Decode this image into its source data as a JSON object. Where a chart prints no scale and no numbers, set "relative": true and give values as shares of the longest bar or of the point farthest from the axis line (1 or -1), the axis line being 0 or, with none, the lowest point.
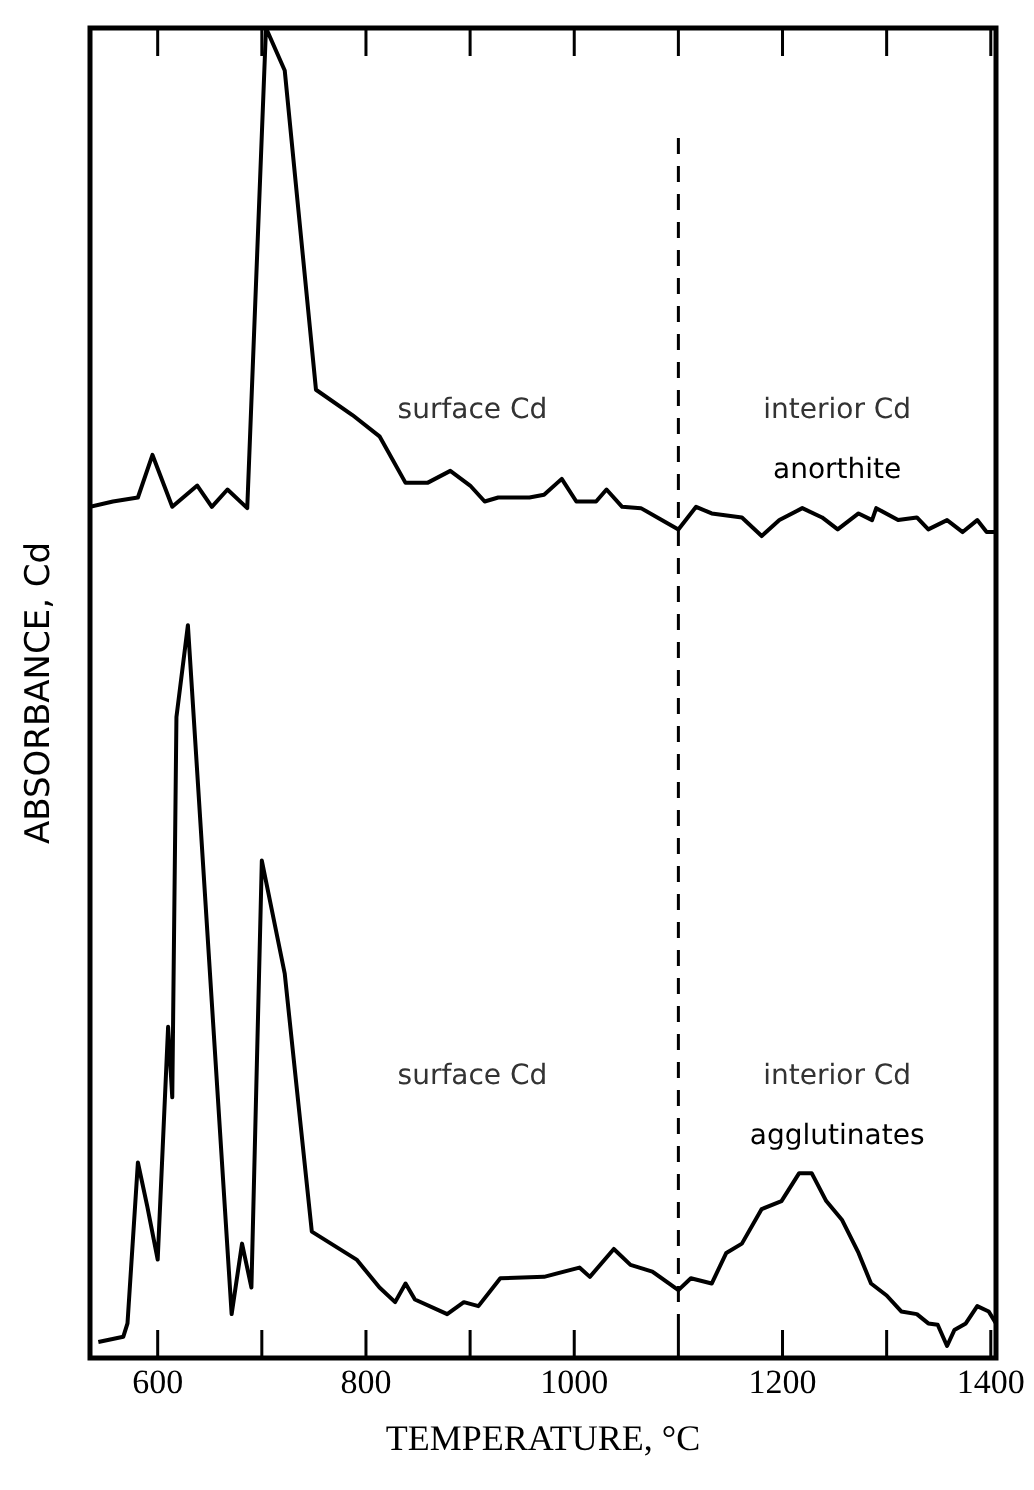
{
  "chart_data": {
    "type": "line",
    "xlabel": "TEMPERATURE, °C",
    "ylabel": "ABSORBANCE, Cd",
    "relative": true,
    "xlim": [
      535,
      1405
    ],
    "xticks": [
      600,
      {
        "value": 700,
        "label": null
      },
      800,
      {
        "value": 900,
        "label": null
      },
      1000,
      {
        "value": 1100,
        "label": null
      },
      1200,
      {
        "value": 1300,
        "label": null
      },
      1400
    ],
    "ref_lines": [
      {
        "axis": "x",
        "value": 1100,
        "line_style": "dashed",
        "color": "#000000"
      }
    ],
    "annotations": [
      "surface Cd",
      "interior Cd",
      "surface Cd",
      "interior Cd"
    ],
    "series": [
      {
        "name": "anorthite",
        "color": "#000000",
        "x": [
          535,
          557,
          581,
          595,
          614,
          638,
          652,
          667,
          686,
          704,
          722,
          752,
          787,
          813,
          838,
          859,
          881,
          900,
          914,
          927,
          957,
          971,
          988,
          1002,
          1021,
          1031,
          1046,
          1064,
          1084,
          1100,
          1117,
          1132,
          1161,
          1180,
          1197,
          1219,
          1238,
          1253,
          1273,
          1286,
          1290,
          1311,
          1329,
          1340,
          1358,
          1373,
          1387,
          1396,
          1405
        ],
        "values": [
          0.64,
          0.644,
          0.647,
          0.679,
          0.64,
          0.656,
          0.64,
          0.653,
          0.639,
          1.0,
          0.968,
          0.728,
          0.709,
          0.693,
          0.658,
          0.658,
          0.667,
          0.656,
          0.644,
          0.647,
          0.647,
          0.649,
          0.661,
          0.644,
          0.644,
          0.653,
          0.64,
          0.639,
          0.63,
          0.623,
          0.64,
          0.635,
          0.632,
          0.618,
          0.63,
          0.639,
          0.632,
          0.623,
          0.635,
          0.63,
          0.639,
          0.63,
          0.632,
          0.623,
          0.63,
          0.621,
          0.63,
          0.621,
          0.621
        ]
      },
      {
        "name": "agglutinates",
        "color": "#000000",
        "x": [
          543,
          567,
          571,
          581,
          590,
          600,
          610,
          614,
          618,
          629,
          652,
          671,
          681,
          690,
          700,
          722,
          748,
          791,
          813,
          828,
          838,
          847,
          878,
          894,
          908,
          929,
          971,
          1005,
          1015,
          1038,
          1054,
          1075,
          1100,
          1112,
          1132,
          1146,
          1161,
          1180,
          1199,
          1216,
          1228,
          1242,
          1257,
          1273,
          1285,
          1300,
          1314,
          1329,
          1340,
          1349,
          1358,
          1365,
          1376,
          1387,
          1398,
          1405
        ],
        "values": [
          0.012,
          0.016,
          0.026,
          0.147,
          0.114,
          0.074,
          0.249,
          0.196,
          0.482,
          0.551,
          0.267,
          0.033,
          0.086,
          0.053,
          0.374,
          0.289,
          0.095,
          0.074,
          0.053,
          0.042,
          0.056,
          0.044,
          0.033,
          0.042,
          0.039,
          0.06,
          0.061,
          0.068,
          0.061,
          0.082,
          0.07,
          0.065,
          0.051,
          0.06,
          0.056,
          0.079,
          0.086,
          0.112,
          0.118,
          0.139,
          0.139,
          0.118,
          0.104,
          0.079,
          0.056,
          0.047,
          0.035,
          0.033,
          0.026,
          0.025,
          0.009,
          0.021,
          0.026,
          0.039,
          0.035,
          0.026
        ]
      }
    ]
  }
}
